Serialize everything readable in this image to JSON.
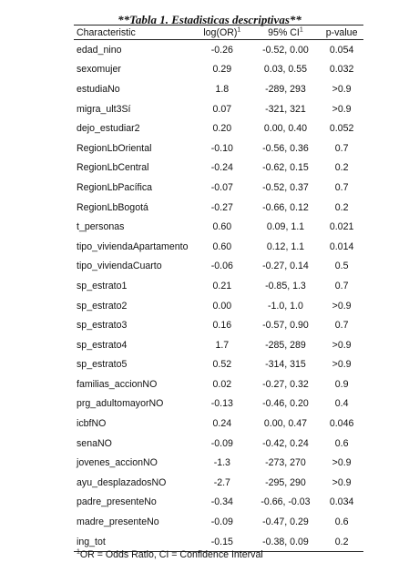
{
  "title": "**Tabla 1. Estadisticas descriptivas**",
  "headers": {
    "characteristic": "Characteristic",
    "log_or": "log(OR)",
    "log_or_sup": "1",
    "ci": "95% CI",
    "ci_sup": "1",
    "p_value": "p-value"
  },
  "rows": [
    {
      "name": "edad_nino",
      "or": "-0.26",
      "ci": "-0.52, 0.00",
      "p": "0.054"
    },
    {
      "name": "sexomujer",
      "or": "0.29",
      "ci": "0.03, 0.55",
      "p": "0.032"
    },
    {
      "name": "estudiaNo",
      "or": "1.8",
      "ci": "-289, 293",
      "p": ">0.9"
    },
    {
      "name": "migra_ult3Sí",
      "or": "0.07",
      "ci": "-321, 321",
      "p": ">0.9"
    },
    {
      "name": "dejo_estudiar2",
      "or": "0.20",
      "ci": "0.00, 0.40",
      "p": "0.052"
    },
    {
      "name": "RegionLbOriental",
      "or": "-0.10",
      "ci": "-0.56, 0.36",
      "p": "0.7"
    },
    {
      "name": "RegionLbCentral",
      "or": "-0.24",
      "ci": "-0.62, 0.15",
      "p": "0.2"
    },
    {
      "name": "RegionLbPacífica",
      "or": "-0.07",
      "ci": "-0.52, 0.37",
      "p": "0.7"
    },
    {
      "name": "RegionLbBogotá",
      "or": "-0.27",
      "ci": "-0.66, 0.12",
      "p": "0.2"
    },
    {
      "name": "t_personas",
      "or": "0.60",
      "ci": "0.09, 1.1",
      "p": "0.021"
    },
    {
      "name": "tipo_viviendaApartamento",
      "or": "0.60",
      "ci": "0.12, 1.1",
      "p": "0.014"
    },
    {
      "name": "tipo_viviendaCuarto",
      "or": "-0.06",
      "ci": "-0.27, 0.14",
      "p": "0.5"
    },
    {
      "name": "sp_estrato1",
      "or": "0.21",
      "ci": "-0.85, 1.3",
      "p": "0.7"
    },
    {
      "name": "sp_estrato2",
      "or": "0.00",
      "ci": "-1.0, 1.0",
      "p": ">0.9"
    },
    {
      "name": "sp_estrato3",
      "or": "0.16",
      "ci": "-0.57, 0.90",
      "p": "0.7"
    },
    {
      "name": "sp_estrato4",
      "or": "1.7",
      "ci": "-285, 289",
      "p": ">0.9"
    },
    {
      "name": "sp_estrato5",
      "or": "0.52",
      "ci": "-314, 315",
      "p": ">0.9"
    },
    {
      "name": "familias_accionNO",
      "or": "0.02",
      "ci": "-0.27, 0.32",
      "p": "0.9"
    },
    {
      "name": "prg_adultomayorNO",
      "or": "-0.13",
      "ci": "-0.46, 0.20",
      "p": "0.4"
    },
    {
      "name": "icbfNO",
      "or": "0.24",
      "ci": "0.00, 0.47",
      "p": "0.046"
    },
    {
      "name": "senaNO",
      "or": "-0.09",
      "ci": "-0.42, 0.24",
      "p": "0.6"
    },
    {
      "name": "jovenes_accionNO",
      "or": "-1.3",
      "ci": "-273, 270",
      "p": ">0.9"
    },
    {
      "name": "ayu_desplazadosNO",
      "or": "-2.7",
      "ci": "-295, 290",
      "p": ">0.9"
    },
    {
      "name": "padre_presenteNo",
      "or": "-0.34",
      "ci": "-0.66, -0.03",
      "p": "0.034"
    },
    {
      "name": "madre_presenteNo",
      "or": "-0.09",
      "ci": "-0.47, 0.29",
      "p": "0.6"
    },
    {
      "name": "ing_tot",
      "or": "-0.15",
      "ci": "-0.38, 0.09",
      "p": "0.2"
    }
  ],
  "footnote": {
    "sup": "1",
    "text": "OR = Odds Ratio, CI = Confidence Interval"
  }
}
